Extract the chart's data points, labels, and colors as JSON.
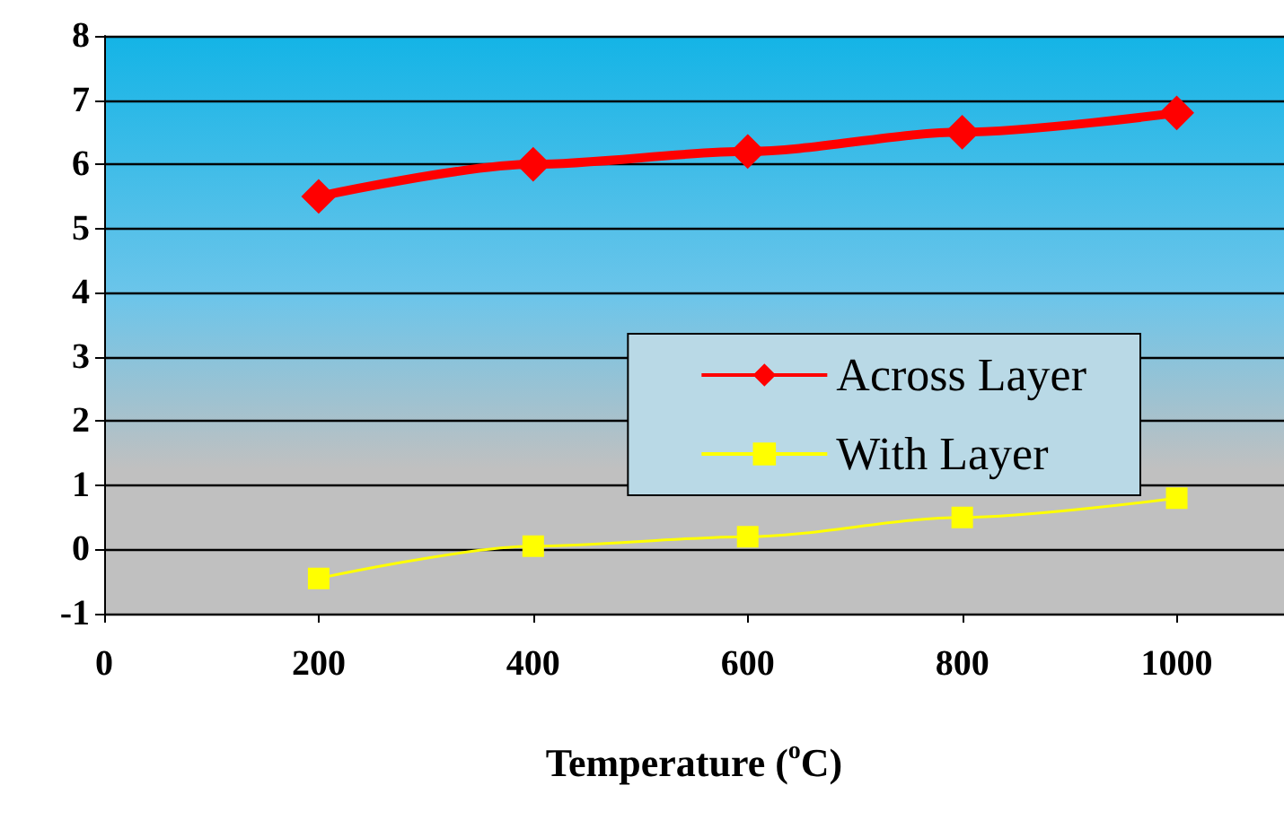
{
  "chart_data": {
    "type": "line",
    "xlabel": "Temperature ($^{o}$C)",
    "x": [
      200,
      400,
      600,
      800,
      1000
    ],
    "series": [
      {
        "name": "Across Layer",
        "color": "#ff0000",
        "values": [
          5.5,
          6.0,
          6.2,
          6.5,
          6.8
        ],
        "marker": "diamond"
      },
      {
        "name": "With Layer",
        "color": "#ffff00",
        "values": [
          -0.45,
          0.05,
          0.2,
          0.5,
          0.8
        ],
        "marker": "square"
      }
    ],
    "xlim": [
      0,
      1100
    ],
    "xticks": [
      0,
      200,
      400,
      600,
      800,
      1000
    ],
    "ylim": [
      -1,
      8
    ],
    "yticks": [
      -1,
      0,
      1,
      2,
      3,
      4,
      5,
      6,
      7,
      8
    ],
    "grid": "y",
    "legend": "right",
    "line_style": "solid"
  }
}
